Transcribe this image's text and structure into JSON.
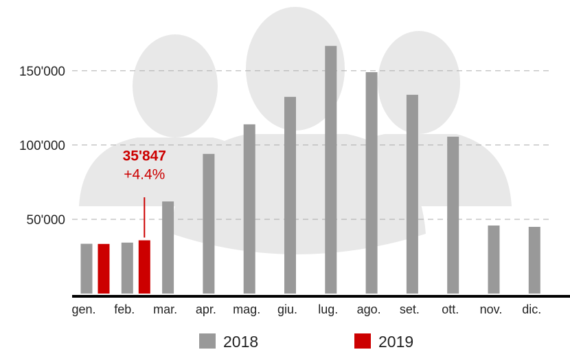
{
  "chart_data": {
    "type": "bar",
    "categories": [
      "gen.",
      "feb.",
      "mar.",
      "apr.",
      "mag.",
      "giu.",
      "lug.",
      "ago.",
      "set.",
      "ott.",
      "nov.",
      "dic."
    ],
    "series": [
      {
        "name": "2018",
        "color": "#999999",
        "values": [
          33500,
          34300,
          62000,
          94000,
          113900,
          132400,
          166700,
          149000,
          133800,
          105600,
          45800,
          44900
        ]
      },
      {
        "name": "2019",
        "color": "#cc0000",
        "values": [
          33400,
          35847,
          null,
          null,
          null,
          null,
          null,
          null,
          null,
          null,
          null,
          null
        ],
        "value_labels": [
          null,
          "35'847",
          null,
          null,
          null,
          null,
          null,
          null,
          null,
          null,
          null,
          null
        ]
      }
    ],
    "annotation": "+4.4%",
    "ylim": [
      0,
      180000
    ],
    "yticks": [
      {
        "value": 50000,
        "label": "50'000"
      },
      {
        "value": 100000,
        "label": "100'000"
      },
      {
        "value": 150000,
        "label": "150'000"
      }
    ],
    "grid": true
  }
}
